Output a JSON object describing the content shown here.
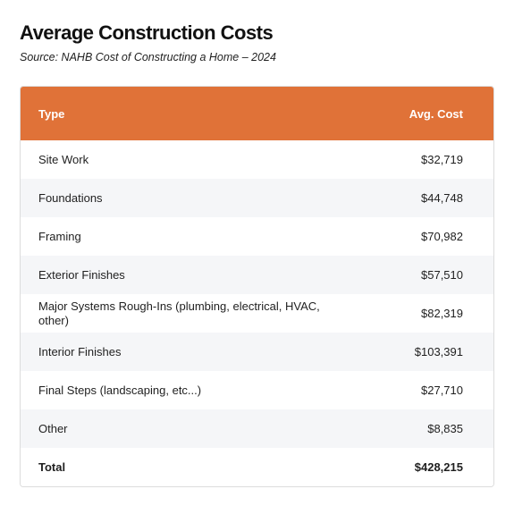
{
  "title": "Average Construction Costs",
  "subtitle": "Source: NAHB Cost of Constructing a Home – 2024",
  "colors": {
    "header_bg": "#e07238",
    "header_text": "#ffffff",
    "stripe": "#f5f6f8"
  },
  "chart_data": {
    "type": "table",
    "columns": [
      "Type",
      "Avg. Cost"
    ],
    "rows": [
      {
        "type": "Site Work",
        "cost": "$32,719"
      },
      {
        "type": "Foundations",
        "cost": "$44,748"
      },
      {
        "type": "Framing",
        "cost": "$70,982"
      },
      {
        "type": "Exterior Finishes",
        "cost": "$57,510"
      },
      {
        "type": "Major Systems Rough-Ins (plumbing, electrical, HVAC, other)",
        "cost": "$82,319"
      },
      {
        "type": "Interior Finishes",
        "cost": "$103,391"
      },
      {
        "type": "Final Steps (landscaping, etc...)",
        "cost": "$27,710"
      },
      {
        "type": "Other",
        "cost": "$8,835"
      }
    ],
    "total": {
      "label": "Total",
      "cost": "$428,215"
    }
  }
}
